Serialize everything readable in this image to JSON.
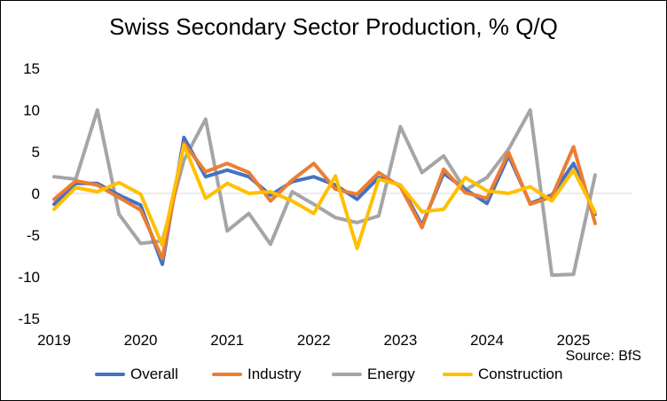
{
  "chart_data": {
    "type": "line",
    "title": "Swiss Secondary Sector Production, % Q/Q",
    "source": "Source: BfS",
    "xlabel": "",
    "ylabel": "",
    "ylim": [
      -15,
      15
    ],
    "yticks": [
      15,
      10,
      5,
      0,
      -5,
      -10,
      -15
    ],
    "ytick_labels": [
      "15",
      "10",
      "5",
      "0",
      "-5",
      "-10",
      "-15"
    ],
    "year_labels": [
      "2019",
      "2020",
      "2021",
      "2022",
      "2023",
      "2024",
      "2025"
    ],
    "quarters": [
      "2019Q1",
      "2019Q2",
      "2019Q3",
      "2019Q4",
      "2020Q1",
      "2020Q2",
      "2020Q3",
      "2020Q4",
      "2021Q1",
      "2021Q2",
      "2021Q3",
      "2021Q4",
      "2022Q1",
      "2022Q2",
      "2022Q3",
      "2022Q4",
      "2023Q1",
      "2023Q2",
      "2023Q3",
      "2023Q4",
      "2024Q1",
      "2024Q2",
      "2024Q3",
      "2024Q4",
      "2025Q1",
      "2025Q2",
      "2025Q3"
    ],
    "series": [
      {
        "name": "Overall",
        "color": "#4472C4",
        "values": [
          -1.3,
          1.2,
          1.2,
          -0.2,
          -1.4,
          -8.5,
          6.7,
          2.0,
          2.8,
          2.0,
          -0.2,
          1.4,
          2.0,
          1.0,
          -0.7,
          1.9,
          1.0,
          -3.8,
          2.4,
          0.5,
          -1.2,
          4.5,
          -1.2,
          -0.2,
          3.6,
          -2.5,
          null
        ]
      },
      {
        "name": "Industry",
        "color": "#ED7D31",
        "values": [
          -0.7,
          1.5,
          1.0,
          -0.5,
          -2.0,
          -7.8,
          6.0,
          2.6,
          3.6,
          2.5,
          -0.9,
          1.6,
          3.6,
          0.5,
          -0.1,
          2.5,
          0.8,
          -4.1,
          2.9,
          0.1,
          -0.6,
          4.9,
          -1.3,
          -0.4,
          5.6,
          -3.6,
          null
        ]
      },
      {
        "name": "Energy",
        "color": "#A5A5A5",
        "values": [
          2.0,
          1.7,
          10.0,
          -2.5,
          -6.0,
          -5.7,
          4.0,
          8.9,
          -4.5,
          -2.4,
          -6.1,
          0.2,
          -1.3,
          -2.9,
          -3.5,
          -2.7,
          8.0,
          2.5,
          4.5,
          0.4,
          1.9,
          5.3,
          10.0,
          -9.8,
          -9.7,
          2.2,
          null
        ]
      },
      {
        "name": "Construction",
        "color": "#FFC000",
        "values": [
          -1.9,
          0.7,
          0.2,
          1.3,
          -0.1,
          -6.2,
          5.8,
          -0.6,
          1.2,
          0.0,
          0.2,
          -0.9,
          -2.4,
          2.1,
          -6.6,
          1.7,
          1.0,
          -2.2,
          -1.9,
          1.9,
          0.3,
          0.0,
          0.8,
          -0.9,
          2.8,
          -2.3,
          null
        ]
      }
    ]
  }
}
